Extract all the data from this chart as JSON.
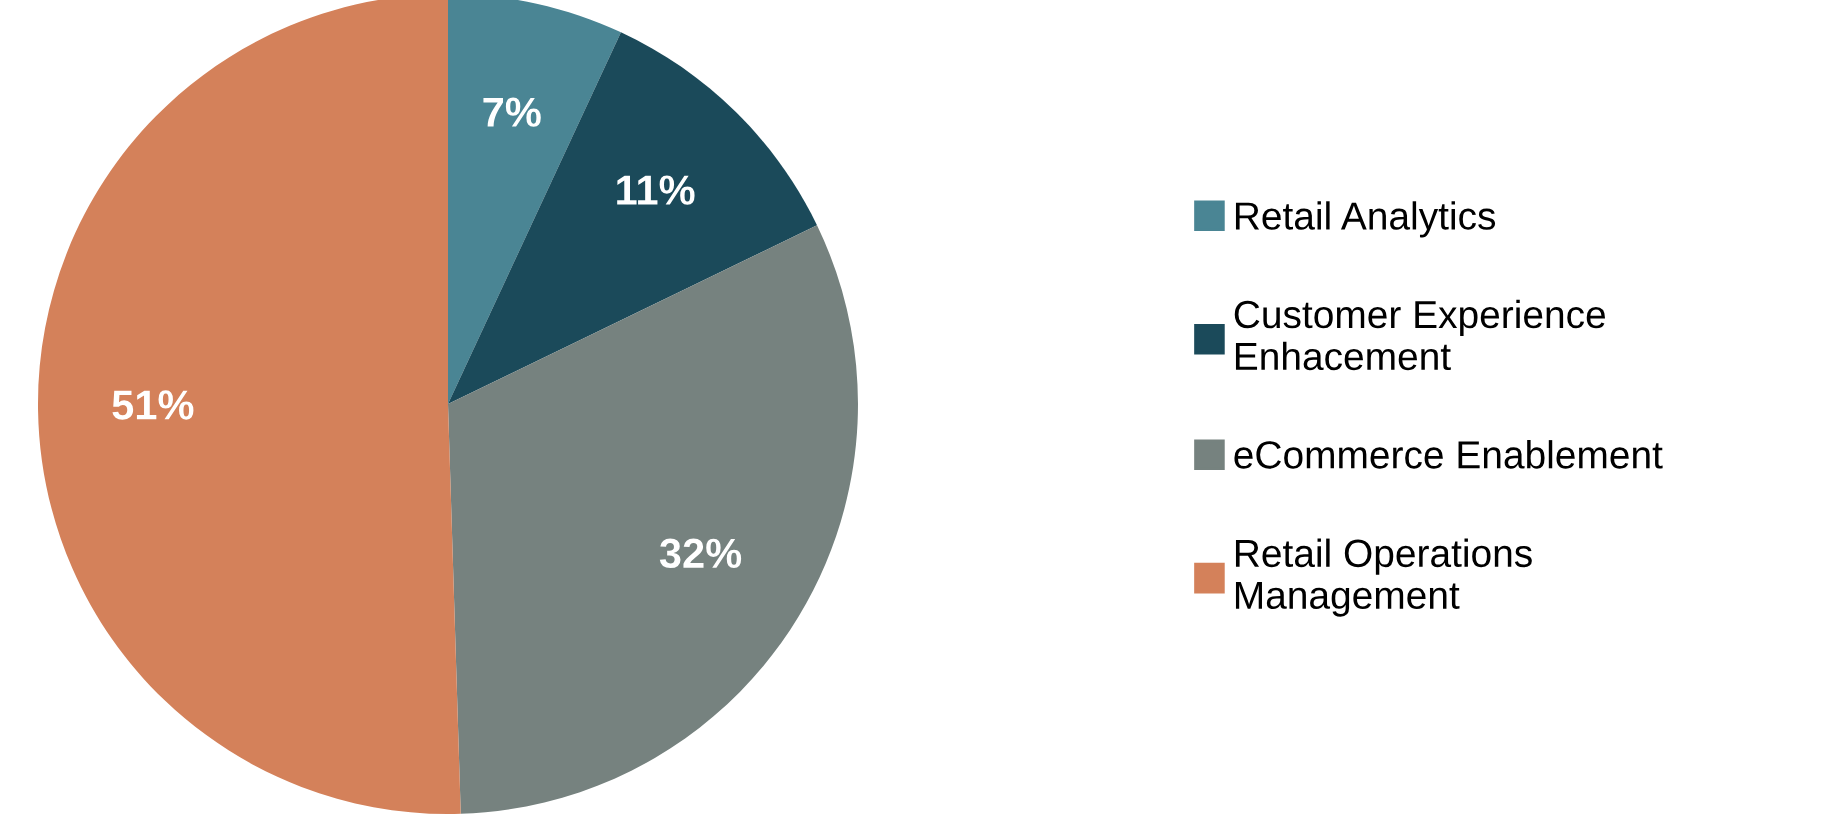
{
  "chart_data": {
    "type": "pie",
    "categories": [
      "Retail Analytics",
      "Customer Experience Enhacement",
      "eCommerce Enablement",
      "Retail Operations Management"
    ],
    "values": [
      7,
      11,
      32,
      51
    ],
    "colors": [
      "#4a8594",
      "#1b4a5a",
      "#76827f",
      "#d4815a"
    ],
    "value_labels": [
      "7%",
      "11%",
      "32%",
      "51%"
    ],
    "legend": "right"
  }
}
